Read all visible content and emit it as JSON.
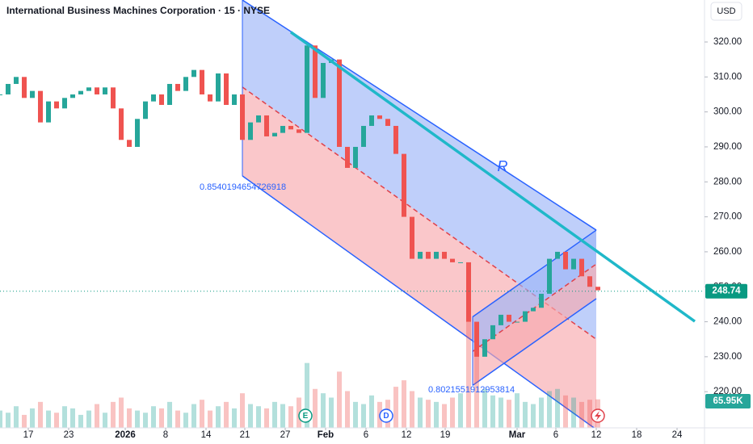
{
  "chart_data": {
    "type": "candlestick",
    "title": "International Business Machines Corporation · 15 · NYSE",
    "currency": "USD",
    "last_price": {
      "value": 248.74,
      "label": "248.74"
    },
    "last_volume": "65.95K",
    "events": [
      "E",
      "D"
    ],
    "xlim": [
      0,
      87.2
    ],
    "ylim": [
      209.2,
      332
    ],
    "xticks": [
      {
        "value": 3.5,
        "label": "17"
      },
      {
        "value": 8.5,
        "label": "23"
      },
      {
        "value": 15.5,
        "label": "2026"
      },
      {
        "value": 20.5,
        "label": "8"
      },
      {
        "value": 25.5,
        "label": "14"
      },
      {
        "value": 30.3,
        "label": "21"
      },
      {
        "value": 35.3,
        "label": "27"
      },
      {
        "value": 40.3,
        "label": "Feb"
      },
      {
        "value": 45.3,
        "label": "6"
      },
      {
        "value": 50.3,
        "label": "12"
      },
      {
        "value": 55.1,
        "label": "19"
      },
      {
        "value": 64,
        "label": "Mar"
      },
      {
        "value": 68.8,
        "label": "6"
      },
      {
        "value": 73.8,
        "label": "12"
      },
      {
        "value": 78.8,
        "label": "18"
      },
      {
        "value": 83.8,
        "label": "24"
      }
    ],
    "yticks": [
      {
        "value": 220,
        "label": "220.00"
      },
      {
        "value": 230,
        "label": "230.00"
      },
      {
        "value": 240,
        "label": "240.00"
      },
      {
        "value": 250,
        "label": "250.00"
      },
      {
        "value": 260,
        "label": "260.00"
      },
      {
        "value": 270,
        "label": "270.00"
      },
      {
        "value": 280,
        "label": "280.00"
      },
      {
        "value": 290,
        "label": "290.00"
      },
      {
        "value": 300,
        "label": "300.00"
      },
      {
        "value": 310,
        "label": "310.00"
      },
      {
        "value": 320,
        "label": "320.00"
      }
    ],
    "up_color": "#26a69a",
    "down_color": "#ef5350",
    "x": [
      0,
      1,
      2,
      3,
      4,
      5,
      6,
      7,
      8,
      9,
      10,
      11,
      12,
      13,
      14,
      15,
      16,
      17,
      18,
      19,
      20,
      21,
      22,
      23,
      24,
      25,
      26,
      27,
      28,
      29,
      30,
      31,
      32,
      33,
      34,
      35,
      36,
      37,
      38,
      39,
      40,
      41,
      42,
      43,
      44,
      45,
      46,
      47,
      48,
      49,
      50,
      51,
      52,
      53,
      54,
      55,
      56,
      57,
      58,
      59,
      60,
      61,
      62,
      63,
      64,
      65,
      66,
      67,
      68,
      69,
      70,
      71,
      72,
      73,
      74
    ],
    "values": [
      305,
      308,
      310,
      304,
      306,
      297,
      303,
      301,
      304,
      305,
      306,
      307,
      305,
      307,
      301,
      292,
      290,
      298,
      303,
      305,
      302,
      308,
      306,
      310,
      312,
      305,
      303,
      311,
      302,
      305,
      292,
      297,
      299,
      293,
      294,
      296,
      295,
      294,
      319,
      304,
      314,
      315,
      290,
      284,
      290,
      296,
      299,
      298,
      296,
      288,
      270,
      258,
      260,
      258,
      260,
      258,
      257,
      257,
      240,
      230,
      235,
      239,
      242,
      240,
      240,
      243,
      244,
      248,
      258,
      260,
      255,
      258,
      253,
      250,
      249
    ],
    "volume": [
      40,
      35,
      50,
      30,
      45,
      60,
      40,
      35,
      50,
      45,
      30,
      40,
      55,
      35,
      60,
      70,
      45,
      40,
      35,
      50,
      45,
      60,
      40,
      35,
      55,
      65,
      40,
      50,
      60,
      45,
      80,
      55,
      50,
      45,
      60,
      55,
      50,
      70,
      150,
      90,
      80,
      70,
      130,
      85,
      60,
      55,
      75,
      60,
      65,
      95,
      110,
      85,
      70,
      65,
      60,
      55,
      70,
      80,
      250,
      180,
      90,
      75,
      70,
      65,
      80,
      60,
      55,
      70,
      85,
      90,
      75,
      70,
      60,
      65,
      65.95
    ],
    "volume_lim": [
      0,
      280
    ],
    "current_line_color": "#089981",
    "channels": [
      {
        "top": [
          [
            30,
            332
          ],
          [
            73.8,
            266.2
          ]
        ],
        "middle": [
          [
            30,
            307.1
          ],
          [
            73.8,
            235
          ]
        ],
        "bottom": [
          [
            30,
            281.7
          ],
          [
            73.8,
            209.2
          ]
        ],
        "upper_fill": "#9db6f7",
        "lower_fill": "#f7a9ad",
        "line_color": "#2962ff",
        "mid_color": "#e0414a",
        "label": "0.8540194654726918"
      },
      {
        "top": [
          [
            58.5,
            241.4
          ],
          [
            73.8,
            266.2
          ]
        ],
        "middle": [
          [
            58.5,
            231.5
          ],
          [
            73.8,
            256.5
          ]
        ],
        "bottom": [
          [
            58.5,
            221.8
          ],
          [
            73.8,
            246.6
          ]
        ],
        "upper_fill": "#9db6f7",
        "lower_fill": "#f7a9ad",
        "line_color": "#2962ff",
        "mid_color": "#e0414a",
        "label": "0.8021551912953814"
      }
    ],
    "trend_line": {
      "points": [
        [
          36,
          322.8
        ],
        [
          86,
          240.1
        ]
      ],
      "color": "#1fb8c9",
      "label": "R"
    }
  }
}
